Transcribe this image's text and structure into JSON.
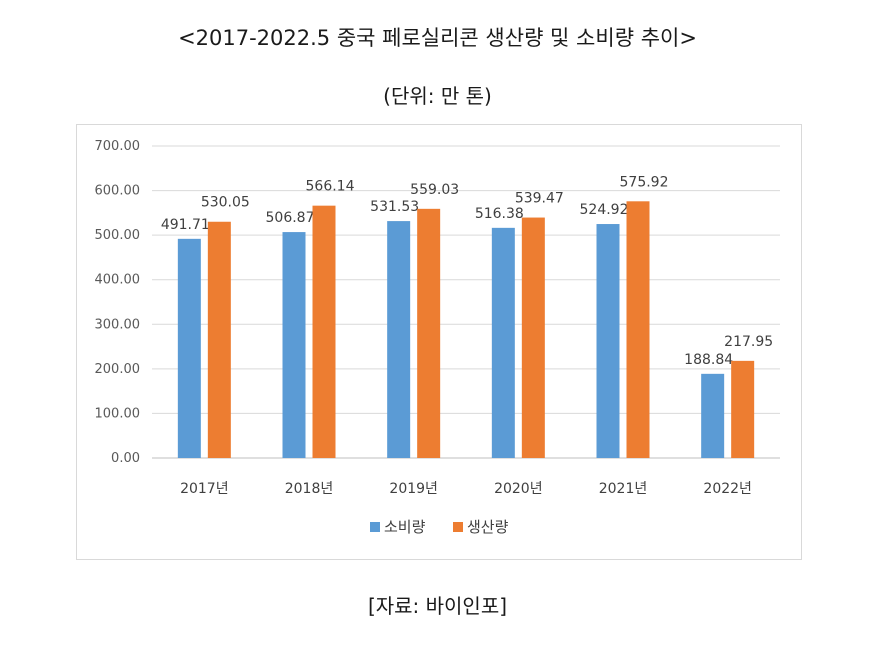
{
  "title": "<2017-2022.5 중국 페로실리콘 생산량 및 소비량 추이>",
  "subtitle": "(단위: 만 톤)",
  "source": "[자료: 바이인포]",
  "chart_data": {
    "type": "bar",
    "categories": [
      "2017년",
      "2018년",
      "2019년",
      "2020년",
      "2021년",
      "2022년"
    ],
    "series": [
      {
        "name": "소비량",
        "values": [
          491.71,
          506.87,
          531.53,
          516.38,
          524.92,
          188.84
        ],
        "color": "#5b9bd5"
      },
      {
        "name": "생산량",
        "values": [
          530.05,
          566.14,
          559.03,
          539.47,
          575.92,
          217.95
        ],
        "color": "#ed7d31"
      }
    ],
    "ylim": [
      0,
      700
    ],
    "yticks": [
      "0.00",
      "100.00",
      "200.00",
      "300.00",
      "400.00",
      "500.00",
      "600.00",
      "700.00"
    ],
    "grid": true,
    "legend_position": "bottom"
  }
}
